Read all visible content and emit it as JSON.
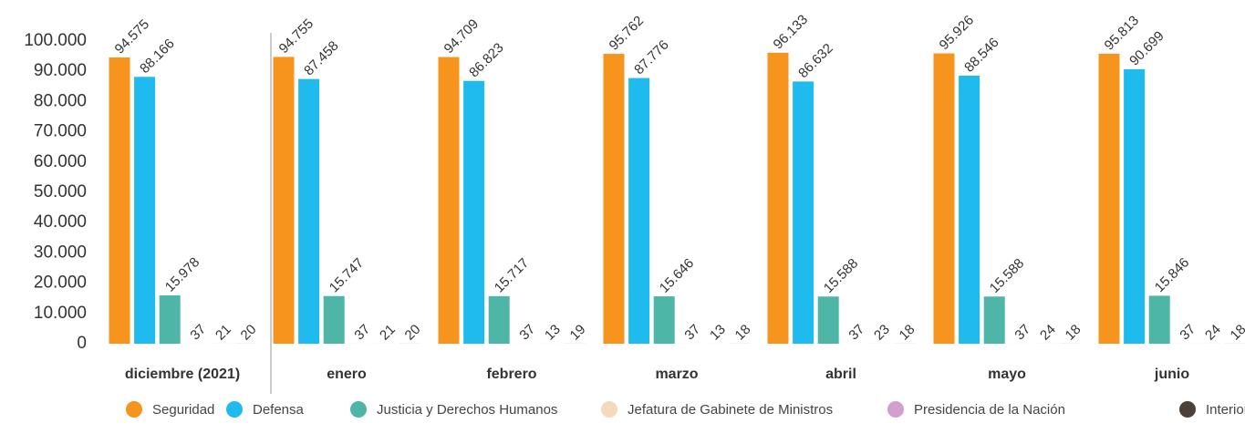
{
  "chart_data": {
    "type": "bar",
    "categories": [
      "diciembre (2021)",
      "enero",
      "febrero",
      "marzo",
      "abril",
      "mayo",
      "junio"
    ],
    "ylim": [
      0,
      100000
    ],
    "yticks": [
      0,
      {
        "value": 10000,
        "label": "10.000"
      },
      {
        "value": 20000,
        "label": "20.000"
      },
      {
        "value": 30000,
        "label": "30.000"
      },
      {
        "value": 40000,
        "label": "40.000"
      },
      {
        "value": 50000,
        "label": "50.000"
      },
      {
        "value": 60000,
        "label": "60.000"
      },
      {
        "value": 70000,
        "label": "70.000"
      },
      {
        "value": 80000,
        "label": "80.000"
      },
      {
        "value": 90000,
        "label": "90.000"
      },
      {
        "value": 100000,
        "label": "100.000"
      }
    ],
    "grid": false,
    "legend": "bottom",
    "series": [
      {
        "name": "Seguridad",
        "color": "#f7941d",
        "values": [
          94575,
          94755,
          94709,
          95762,
          96133,
          95926,
          95813
        ],
        "value_labels": [
          "94.575",
          "94.755",
          "94.709",
          "95.762",
          "96.133",
          "95.926",
          "95.813"
        ]
      },
      {
        "name": "Defensa",
        "color": "#1fbbef",
        "values": [
          88166,
          87458,
          86823,
          87776,
          86632,
          88546,
          90699
        ],
        "value_labels": [
          "88.166",
          "87.458",
          "86.823",
          "87.776",
          "86.632",
          "88.546",
          "90.699"
        ]
      },
      {
        "name": "Justicia y Derechos Humanos",
        "color": "#4db6a6",
        "values": [
          15978,
          15747,
          15717,
          15646,
          15588,
          15588,
          15846
        ],
        "value_labels": [
          "15.978",
          "15.747",
          "15.717",
          "15.646",
          "15.588",
          "15.588",
          "15.846"
        ]
      },
      {
        "name": "Jefatura de Gabinete de Ministros",
        "color": "#f5d9bc",
        "values": [
          37,
          37,
          37,
          37,
          37,
          37,
          37
        ]
      },
      {
        "name": "Presidencia de la Nación",
        "color": "#d39fcf",
        "values": [
          21,
          21,
          13,
          13,
          23,
          24,
          24
        ]
      },
      {
        "name": "Interior",
        "color": "#4d4037",
        "values": [
          20,
          20,
          19,
          18,
          18,
          18,
          18
        ]
      }
    ]
  }
}
